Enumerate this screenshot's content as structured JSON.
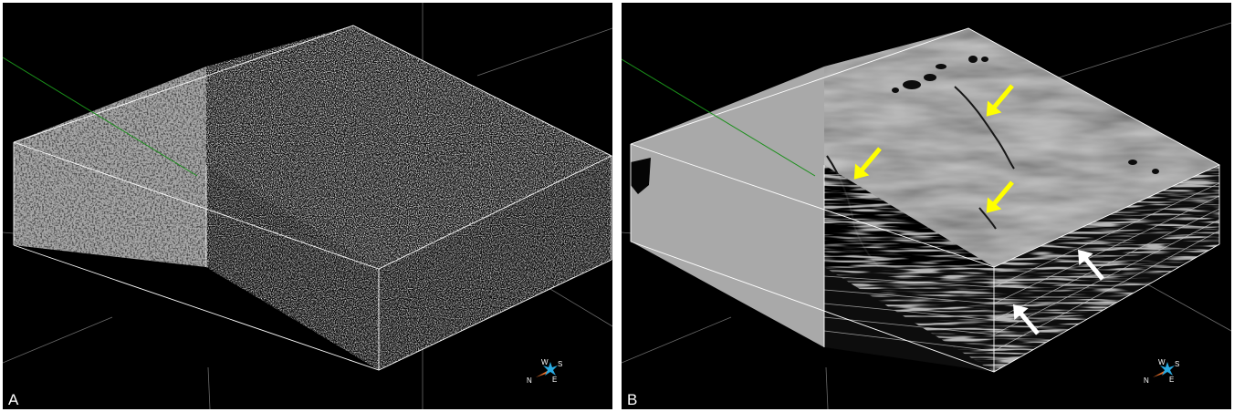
{
  "panels": [
    {
      "label": "A",
      "compass": {
        "north": "N",
        "south": "S",
        "east": "E",
        "west": "W"
      },
      "arrows": []
    },
    {
      "label": "B",
      "compass": {
        "north": "N",
        "south": "S",
        "east": "E",
        "west": "W"
      },
      "arrows": [
        {
          "color": "#ffff00",
          "target": "fault-1"
        },
        {
          "color": "#ffff00",
          "target": "fault-2"
        },
        {
          "color": "#ffff00",
          "target": "fault-3"
        },
        {
          "color": "#ffffff",
          "target": "layer-1"
        },
        {
          "color": "#ffffff",
          "target": "layer-2"
        }
      ]
    }
  ],
  "colors": {
    "background": "#000000",
    "edge_line": "#ffffff",
    "axis_green": "#1a8f1a",
    "gray_face": "#a9a9a9",
    "arrow_yellow": "#ffff00",
    "arrow_white": "#ffffff",
    "compass_blue": "#29a9e0",
    "compass_orange": "#e8702a"
  }
}
